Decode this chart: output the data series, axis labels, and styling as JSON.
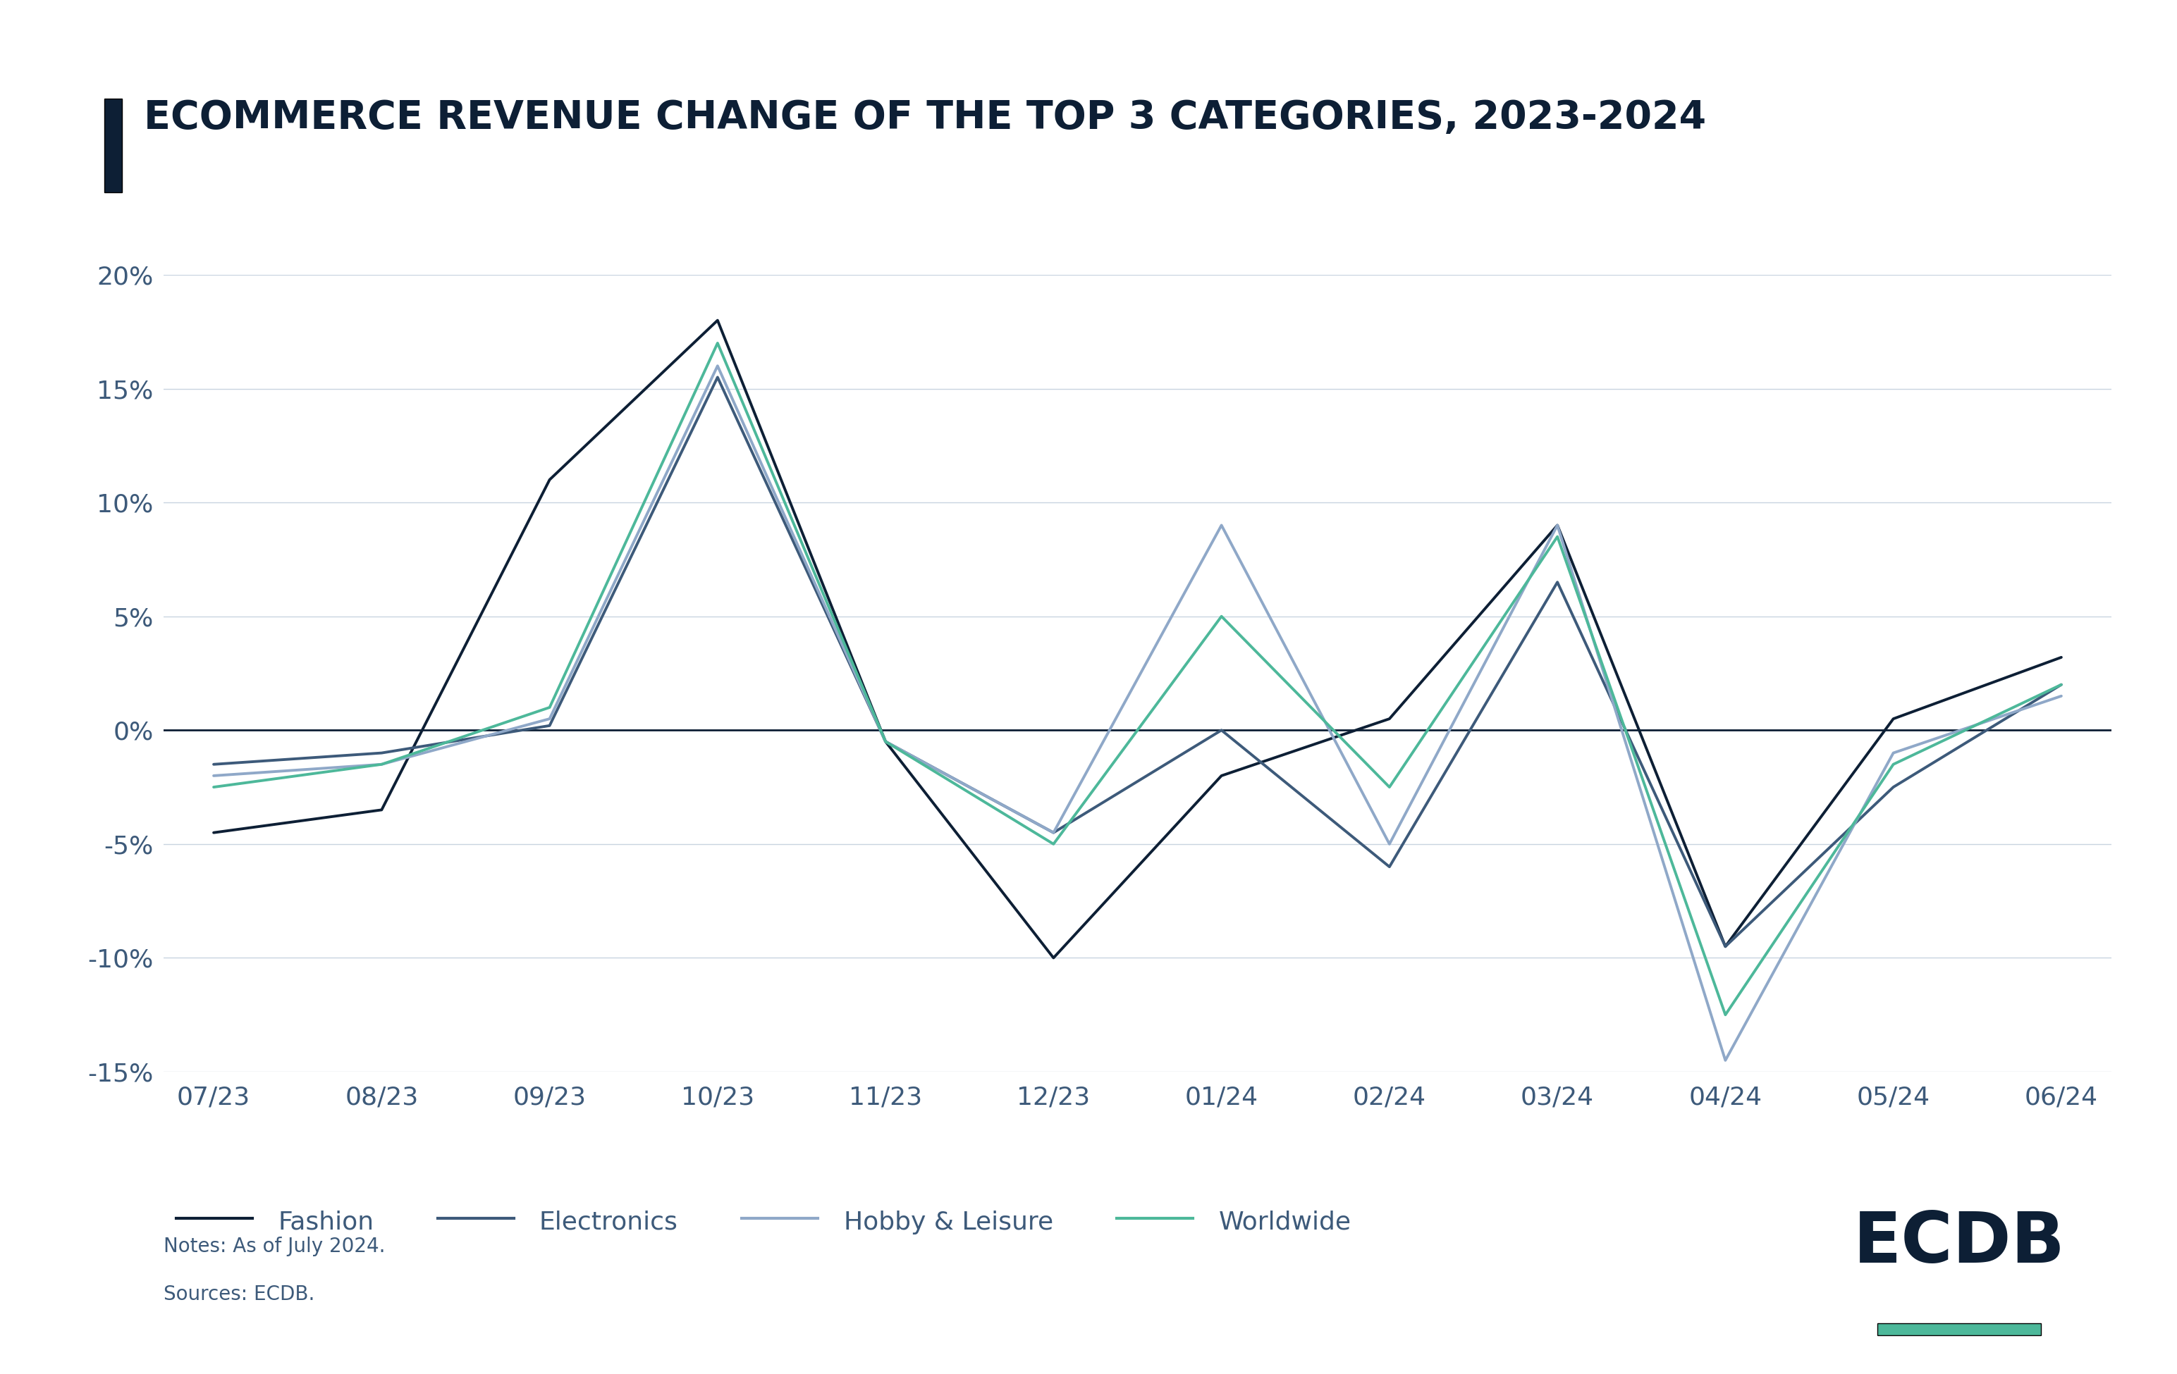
{
  "title": "ECOMMERCE REVENUE CHANGE OF THE TOP 3 CATEGORIES, 2023-2024",
  "title_color": "#0d1f35",
  "title_bar_color": "#0d1f35",
  "background_color": "#ffffff",
  "x_labels": [
    "07/23",
    "08/23",
    "09/23",
    "10/23",
    "11/23",
    "12/23",
    "01/24",
    "02/24",
    "03/24",
    "04/24",
    "05/24",
    "06/24"
  ],
  "series": {
    "Fashion": {
      "color": "#0d1f35",
      "linewidth": 2.8,
      "values": [
        -4.5,
        -3.5,
        11.0,
        18.0,
        -0.5,
        -10.0,
        -2.0,
        0.5,
        9.0,
        -9.5,
        0.5,
        3.2
      ]
    },
    "Electronics": {
      "color": "#3d5a7a",
      "linewidth": 2.8,
      "values": [
        -1.5,
        -1.0,
        0.2,
        15.5,
        -0.5,
        -4.5,
        0.0,
        -6.0,
        6.5,
        -9.5,
        -2.5,
        2.0
      ]
    },
    "Hobby & Leisure": {
      "color": "#8fa8c8",
      "linewidth": 2.8,
      "values": [
        -2.0,
        -1.5,
        0.5,
        16.0,
        -0.5,
        -4.5,
        9.0,
        -5.0,
        9.0,
        -14.5,
        -1.0,
        1.5
      ]
    },
    "Worldwide": {
      "color": "#4db89a",
      "linewidth": 2.8,
      "values": [
        -2.5,
        -1.5,
        1.0,
        17.0,
        -0.5,
        -5.0,
        5.0,
        -2.5,
        8.5,
        -12.5,
        -1.5,
        2.0
      ]
    }
  },
  "ylim": [
    -15,
    20
  ],
  "yticks": [
    -15,
    -10,
    -5,
    0,
    5,
    10,
    15,
    20
  ],
  "ytick_labels": [
    "-15%",
    "-10%",
    "-5%",
    "0%",
    "5%",
    "10%",
    "15%",
    "20%"
  ],
  "notes_line1": "Notes: As of July 2024.",
  "notes_line2": "Sources: ECDB.",
  "ecdb_text": "ECDB",
  "ecdb_underline_color": "#4db89a",
  "grid_color": "#c8d4e0",
  "zeroline_color": "#0d1f35",
  "tick_color": "#3d5a7a",
  "legend_items": [
    "Fashion",
    "Electronics",
    "Hobby & Leisure",
    "Worldwide"
  ]
}
